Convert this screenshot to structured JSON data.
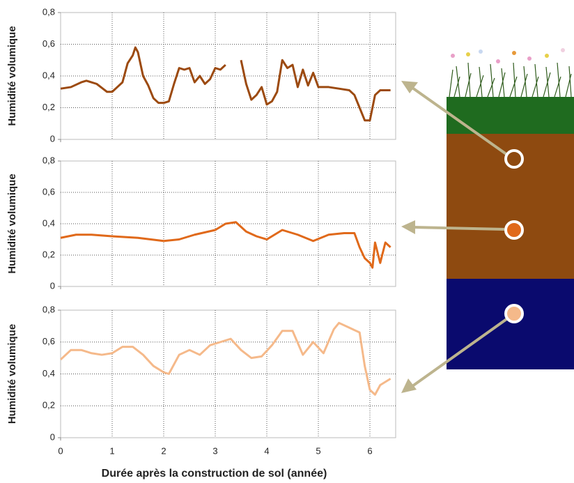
{
  "chart_data": [
    {
      "type": "line",
      "ylabel": "Humidité volumique",
      "xlim": [
        0,
        6.5
      ],
      "ylim": [
        0,
        0.8
      ],
      "grid": true,
      "xticks": [
        0,
        1,
        2,
        3,
        4,
        5,
        6
      ],
      "yticks": [
        0,
        {
          "value": 0.2,
          "label": "0,2"
        },
        {
          "value": 0.4,
          "label": "0,4"
        },
        {
          "value": 0.6,
          "label": "0,6"
        },
        {
          "value": 0.8,
          "label": "0,8"
        }
      ],
      "series": [
        {
          "color": "#9c4a10",
          "x": [
            0,
            0.2,
            0.4,
            0.5,
            0.7,
            0.9,
            1.0,
            1.1,
            1.2,
            1.3,
            1.4,
            1.45,
            1.5,
            1.6,
            1.7,
            1.8,
            1.9,
            2.0,
            2.1,
            2.2,
            2.3,
            2.4,
            2.5,
            2.6,
            2.7,
            2.8,
            2.9,
            3.0,
            3.1,
            3.2,
            3.3,
            3.5,
            3.6,
            3.7,
            3.8,
            3.9,
            4.0,
            4.1,
            4.2,
            4.3,
            4.4,
            4.5,
            4.6,
            4.7,
            4.8,
            4.9,
            5.0,
            5.2,
            5.4,
            5.6,
            5.7,
            5.8,
            5.9,
            6.0,
            6.1,
            6.2,
            6.4
          ],
          "values": [
            0.32,
            0.33,
            0.36,
            0.37,
            0.35,
            0.3,
            0.3,
            0.33,
            0.36,
            0.48,
            0.53,
            0.58,
            0.55,
            0.4,
            0.34,
            0.26,
            0.23,
            0.23,
            0.24,
            0.35,
            0.45,
            0.44,
            0.45,
            0.36,
            0.4,
            0.35,
            0.38,
            0.45,
            0.44,
            0.47,
            null,
            0.5,
            0.35,
            0.25,
            0.28,
            0.33,
            0.22,
            0.24,
            0.3,
            0.5,
            0.45,
            0.47,
            0.33,
            0.44,
            0.34,
            0.42,
            0.33,
            0.33,
            0.32,
            0.31,
            0.28,
            0.2,
            0.12,
            0.12,
            0.28,
            0.31,
            0.31
          ]
        }
      ]
    },
    {
      "type": "line",
      "ylabel": "Humidité volumique",
      "xlim": [
        0,
        6.5
      ],
      "ylim": [
        0,
        0.8
      ],
      "grid": true,
      "xticks": [
        0,
        1,
        2,
        3,
        4,
        5,
        6
      ],
      "yticks": [
        0,
        {
          "value": 0.2,
          "label": "0,2"
        },
        {
          "value": 0.4,
          "label": "0,4"
        },
        {
          "value": 0.6,
          "label": "0,6"
        },
        {
          "value": 0.8,
          "label": "0,8"
        }
      ],
      "series": [
        {
          "color": "#e0691a",
          "x": [
            0,
            0.3,
            0.6,
            1,
            1.5,
            2,
            2.3,
            2.6,
            3,
            3.2,
            3.4,
            3.6,
            3.8,
            4,
            4.3,
            4.6,
            4.9,
            5.2,
            5.5,
            5.7,
            5.8,
            5.9,
            6.0,
            6.05,
            6.1,
            6.2,
            6.3,
            6.4
          ],
          "values": [
            0.31,
            0.33,
            0.33,
            0.32,
            0.31,
            0.29,
            0.3,
            0.33,
            0.36,
            0.4,
            0.41,
            0.35,
            0.32,
            0.3,
            0.36,
            0.33,
            0.29,
            0.33,
            0.34,
            0.34,
            0.25,
            0.18,
            0.15,
            0.12,
            0.28,
            0.15,
            0.28,
            0.25
          ]
        }
      ]
    },
    {
      "type": "line",
      "ylabel": "Humidité volumique",
      "xlabel": "Durée après la construction de sol (année)",
      "xlim": [
        0,
        6.5
      ],
      "ylim": [
        0,
        0.8
      ],
      "grid": true,
      "xticks": [
        0,
        1,
        2,
        3,
        4,
        5,
        6
      ],
      "yticks": [
        0,
        {
          "value": 0.2,
          "label": "0,2"
        },
        {
          "value": 0.4,
          "label": "0,4"
        },
        {
          "value": 0.6,
          "label": "0,6"
        },
        {
          "value": 0.8,
          "label": "0,8"
        }
      ],
      "series": [
        {
          "color": "#f5b98a",
          "x": [
            0,
            0.2,
            0.4,
            0.6,
            0.8,
            1.0,
            1.2,
            1.4,
            1.6,
            1.8,
            2.0,
            2.1,
            2.3,
            2.5,
            2.7,
            2.9,
            3.1,
            3.3,
            3.5,
            3.7,
            3.9,
            4.1,
            4.3,
            4.5,
            4.7,
            4.9,
            5.1,
            5.3,
            5.4,
            5.6,
            5.8,
            5.9,
            6.0,
            6.1,
            6.2,
            6.4
          ],
          "values": [
            0.49,
            0.55,
            0.55,
            0.53,
            0.52,
            0.53,
            0.57,
            0.57,
            0.52,
            0.45,
            0.41,
            0.4,
            0.52,
            0.55,
            0.52,
            0.58,
            0.6,
            0.62,
            0.55,
            0.5,
            0.51,
            0.58,
            0.67,
            0.67,
            0.52,
            0.6,
            0.53,
            0.68,
            0.72,
            0.69,
            0.66,
            0.45,
            0.3,
            0.27,
            0.33,
            0.37
          ]
        }
      ]
    }
  ]
}
